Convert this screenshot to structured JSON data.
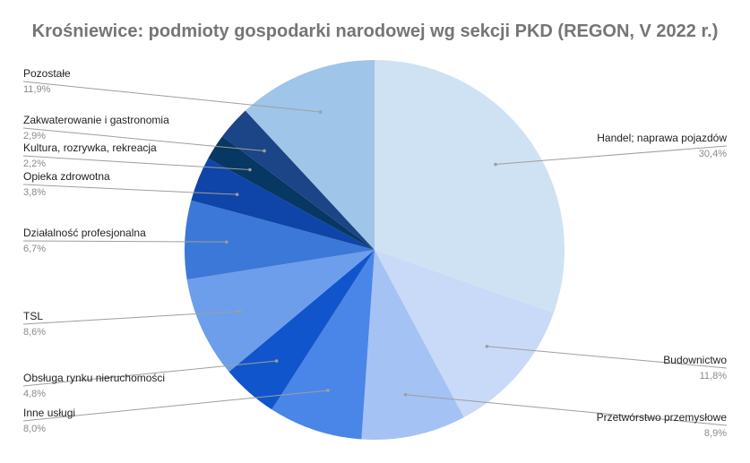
{
  "chart_data": {
    "type": "pie",
    "title": "Krośniewice: podmioty gospodarki narodowej wg sekcji PKD (REGON, V 2022 r.)",
    "legend": "labels with leader lines",
    "slices": [
      {
        "name": "Handel; naprawa pojazdów",
        "value": 30.4,
        "label": "30,4%",
        "color": "#cfe2f3",
        "side": "right"
      },
      {
        "name": "Budownictwo",
        "value": 11.8,
        "label": "11,8%",
        "color": "#c9daf8",
        "side": "right"
      },
      {
        "name": "Przetwórstwo przemysłowe",
        "value": 8.9,
        "label": "8,9%",
        "color": "#a4c2f4",
        "side": "right"
      },
      {
        "name": "Inne usługi",
        "value": 8.0,
        "label": "8,0%",
        "color": "#4a86e8",
        "side": "left"
      },
      {
        "name": "Obsługa rynku nieruchomości",
        "value": 4.8,
        "label": "4,8%",
        "color": "#1155cc",
        "side": "left"
      },
      {
        "name": "TSL",
        "value": 8.6,
        "label": "8,6%",
        "color": "#6d9eeb",
        "side": "left"
      },
      {
        "name": "Działalność profesjonalna",
        "value": 6.7,
        "label": "6,7%",
        "color": "#3c78d8",
        "side": "left"
      },
      {
        "name": "Opieka zdrowotna",
        "value": 3.8,
        "label": "3,8%",
        "color": "#0f45a8",
        "side": "left"
      },
      {
        "name": "Kultura, rozrywka, rekreacja",
        "value": 2.2,
        "label": "2,2%",
        "color": "#073763",
        "side": "left"
      },
      {
        "name": "Zakwaterowanie i gastronomia",
        "value": 2.9,
        "label": "2,9%",
        "color": "#1c4587",
        "side": "left"
      },
      {
        "name": "Pozostałe",
        "value": 11.9,
        "label": "11,9%",
        "color": "#9fc5e8",
        "side": "left"
      }
    ]
  }
}
